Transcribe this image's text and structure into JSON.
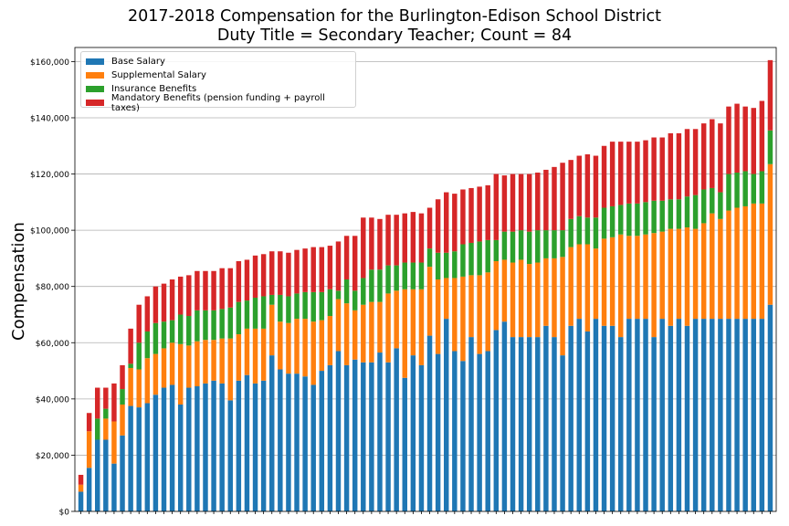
{
  "chart_data": {
    "type": "bar",
    "stacked": true,
    "title_line1": "2017-2018 Compensation for the Burlington-Edison School District",
    "title_line2": "Duty Title = Secondary Teacher; Count = 84",
    "ylabel": "Compensation",
    "xlabel": "",
    "ylim": [
      0,
      165000
    ],
    "yticks": [
      0,
      20000,
      40000,
      60000,
      80000,
      100000,
      120000,
      140000,
      160000
    ],
    "ytick_labels": [
      "$0",
      "$20,000",
      "$40,000",
      "$60,000",
      "$80,000",
      "$100,000",
      "$120,000",
      "$140,000",
      "$160,000"
    ],
    "grid": "horizontal",
    "legend_position": "top-left",
    "series": [
      {
        "name": "Base Salary",
        "color": "#1f77b4",
        "values": [
          7000,
          15500,
          25500,
          25500,
          17000,
          27000,
          37500,
          37000,
          38500,
          41500,
          44000,
          45000,
          38000,
          44000,
          44500,
          45500,
          46500,
          45500,
          39500,
          46500,
          48500,
          45500,
          46500,
          55500,
          50500,
          49000,
          49000,
          48000,
          45000,
          50000,
          52000,
          57000,
          52000,
          54000,
          53000,
          53000,
          56500,
          53000,
          58000,
          47500,
          55500,
          52000,
          62500,
          56000,
          68500,
          57000,
          53500,
          62000,
          56000,
          57000,
          64500,
          67500,
          62000,
          62000,
          62000,
          62000,
          66000,
          62000,
          55500,
          66000,
          68500,
          64000,
          68500,
          66000,
          66000,
          62000,
          68500,
          68500,
          68500,
          62000,
          68500,
          66000,
          68500,
          66000,
          68500,
          68500,
          68500,
          68500,
          68500,
          68500,
          68500,
          68500,
          68500,
          73500
        ]
      },
      {
        "name": "Supplemental Salary",
        "color": "#ff7f0e",
        "values": [
          2500,
          13000,
          0,
          7500,
          15000,
          11000,
          13500,
          13500,
          16000,
          14500,
          14000,
          15000,
          21500,
          15000,
          16000,
          15500,
          14500,
          16000,
          22000,
          16500,
          16500,
          19500,
          18500,
          18000,
          17000,
          18000,
          19500,
          20500,
          22500,
          18000,
          17500,
          18500,
          22000,
          17500,
          20500,
          21500,
          18000,
          24500,
          20500,
          31500,
          23500,
          27000,
          24500,
          26500,
          14500,
          26000,
          30000,
          22000,
          28000,
          28000,
          24500,
          22000,
          26500,
          27500,
          26000,
          26500,
          24000,
          28000,
          35000,
          28000,
          26500,
          31000,
          25000,
          31000,
          31500,
          36500,
          29500,
          29500,
          30000,
          37000,
          31000,
          34500,
          32000,
          35000,
          32000,
          34000,
          37500,
          35500,
          38500,
          39500,
          40000,
          41000,
          41000,
          50000
        ]
      },
      {
        "name": "Insurance Benefits",
        "color": "#2ca02c",
        "values": [
          0,
          0,
          7500,
          3500,
          0,
          5500,
          1500,
          9500,
          9500,
          11000,
          9500,
          8000,
          10500,
          10500,
          11000,
          10500,
          10500,
          10500,
          11000,
          11500,
          10000,
          11000,
          11500,
          3500,
          9500,
          9500,
          9000,
          9500,
          10500,
          10000,
          9500,
          3000,
          8500,
          7000,
          9500,
          11500,
          11500,
          10000,
          9000,
          9500,
          9500,
          9500,
          6500,
          9500,
          9000,
          9500,
          11500,
          11500,
          12000,
          11500,
          7500,
          10000,
          11000,
          10500,
          11500,
          11500,
          10000,
          10000,
          9500,
          10000,
          10000,
          9500,
          11000,
          11000,
          11000,
          10500,
          11500,
          11500,
          11500,
          11500,
          11000,
          10500,
          10500,
          11000,
          12000,
          12000,
          9000,
          9500,
          13000,
          12500,
          12500,
          10500,
          11500,
          12000
        ]
      },
      {
        "name": "Mandatory Benefits (pension funding + payroll taxes)",
        "color": "#d62728",
        "values": [
          3500,
          6500,
          11000,
          7500,
          13500,
          8500,
          12500,
          13500,
          12500,
          13000,
          13500,
          14500,
          13500,
          14500,
          14000,
          14000,
          14000,
          14500,
          14000,
          14500,
          14500,
          15000,
          15000,
          15500,
          15500,
          15500,
          15500,
          15500,
          16000,
          16000,
          15500,
          17500,
          15500,
          19500,
          21500,
          18500,
          18000,
          18000,
          18000,
          17500,
          18000,
          17500,
          14500,
          19000,
          21500,
          20500,
          19500,
          19500,
          19500,
          19500,
          23500,
          20000,
          20500,
          20000,
          20500,
          20500,
          21500,
          22500,
          24000,
          21000,
          21500,
          22500,
          22000,
          22000,
          23000,
          22500,
          22000,
          22000,
          22000,
          22500,
          22500,
          23500,
          23500,
          24000,
          23500,
          23500,
          24500,
          24500,
          24000,
          24500,
          23000,
          23500,
          25000,
          25000
        ]
      }
    ]
  }
}
